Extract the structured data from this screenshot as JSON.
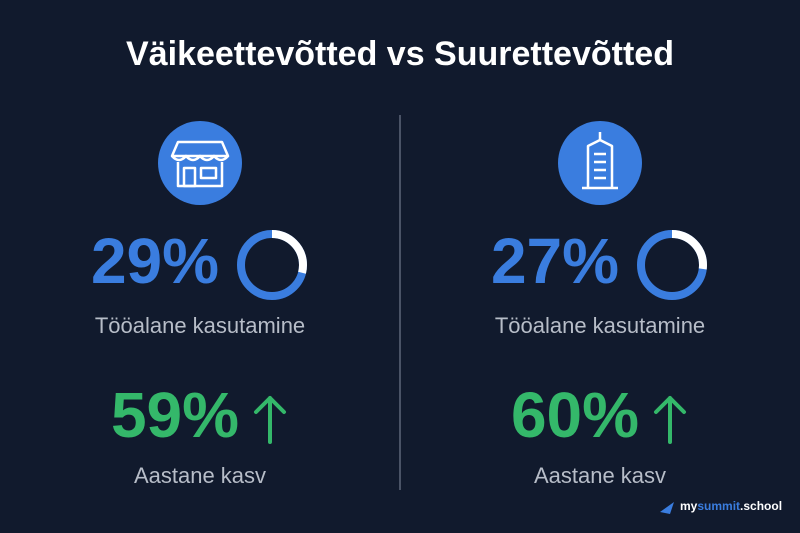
{
  "title": "Väikeettevõtted vs Suurettevõtted",
  "panels": [
    {
      "usage": {
        "value": 29,
        "value_label": "29%",
        "caption": "Tööalane kasutamine"
      },
      "growth": {
        "value": 59,
        "value_label": "59%",
        "caption": "Aastane kasv"
      }
    },
    {
      "usage": {
        "value": 27,
        "value_label": "27%",
        "caption": "Tööalane kasutamine"
      },
      "growth": {
        "value": 60,
        "value_label": "60%",
        "caption": "Aastane kasv"
      }
    }
  ],
  "brand": {
    "parts": [
      "my",
      "summit",
      ".school"
    ]
  }
}
